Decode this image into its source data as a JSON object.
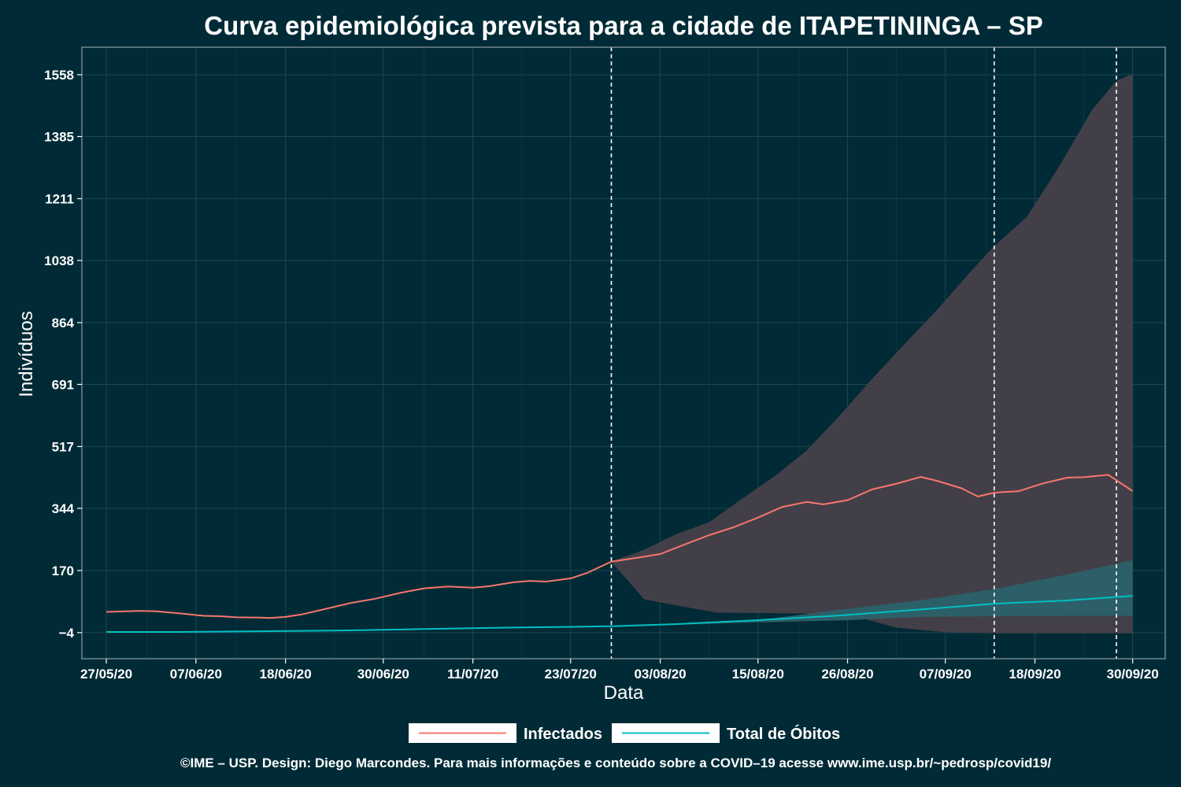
{
  "colors": {
    "background": "#002b36",
    "panel_border": "#8a9aa0",
    "grid": "#1f4550",
    "infectados": "#f8766d",
    "obitos": "#00bfc4",
    "band_infectados": "#433f48",
    "band_obitos": "#2c5f67",
    "vline": "#ffffff",
    "legend_box": "#ffffff"
  },
  "chart_data": {
    "type": "line",
    "title": "Curva epidemiológica prevista para a cidade de ITAPETININGA – SP",
    "xlabel": "Data",
    "ylabel": "Indivíduos",
    "x_start": "2020-05-24",
    "x_end": "2020-10-04",
    "ylim": [
      -77,
      1635
    ],
    "yticks": [
      -4,
      170,
      344,
      517,
      691,
      864,
      1038,
      1211,
      1385,
      1558
    ],
    "ytick_labels": [
      "−4",
      "170",
      "344",
      "517",
      "691",
      "864",
      "1038",
      "1211",
      "1385",
      "1558"
    ],
    "xticks": [
      {
        "date": "2020-05-27",
        "label": "27/05/20"
      },
      {
        "date": "2020-06-07",
        "label": "07/06/20"
      },
      {
        "date": "2020-06-18",
        "label": "18/06/20"
      },
      {
        "date": "2020-06-30",
        "label": "30/06/20"
      },
      {
        "date": "2020-07-11",
        "label": "11/07/20"
      },
      {
        "date": "2020-07-23",
        "label": "23/07/20"
      },
      {
        "date": "2020-08-03",
        "label": "03/08/20"
      },
      {
        "date": "2020-08-15",
        "label": "15/08/20"
      },
      {
        "date": "2020-08-26",
        "label": "26/08/20"
      },
      {
        "date": "2020-09-07",
        "label": "07/09/20"
      },
      {
        "date": "2020-09-18",
        "label": "18/09/20"
      },
      {
        "date": "2020-09-30",
        "label": "30/09/20"
      }
    ],
    "vlines": [
      "2020-07-28",
      "2020-09-13",
      "2020-09-28"
    ],
    "grid": true,
    "legend_position": "bottom",
    "series": [
      {
        "name": "Infectados",
        "color": "#f8766d",
        "points": [
          [
            "2020-05-27",
            54
          ],
          [
            "2020-05-31",
            57
          ],
          [
            "2020-06-02",
            56
          ],
          [
            "2020-06-05",
            50
          ],
          [
            "2020-06-08",
            43
          ],
          [
            "2020-06-10",
            42
          ],
          [
            "2020-06-12",
            39
          ],
          [
            "2020-06-15",
            38
          ],
          [
            "2020-06-16",
            37
          ],
          [
            "2020-06-18",
            40
          ],
          [
            "2020-06-20",
            47
          ],
          [
            "2020-06-23",
            63
          ],
          [
            "2020-06-26",
            79
          ],
          [
            "2020-06-29",
            91
          ],
          [
            "2020-07-02",
            107
          ],
          [
            "2020-07-05",
            120
          ],
          [
            "2020-07-08",
            125
          ],
          [
            "2020-07-11",
            122
          ],
          [
            "2020-07-13",
            126
          ],
          [
            "2020-07-16",
            137
          ],
          [
            "2020-07-18",
            141
          ],
          [
            "2020-07-20",
            139
          ],
          [
            "2020-07-23",
            148
          ],
          [
            "2020-07-25",
            163
          ],
          [
            "2020-07-28",
            195
          ],
          [
            "2020-07-31",
            205
          ],
          [
            "2020-08-03",
            216
          ],
          [
            "2020-08-06",
            243
          ],
          [
            "2020-08-09",
            269
          ],
          [
            "2020-08-12",
            291
          ],
          [
            "2020-08-15",
            318
          ],
          [
            "2020-08-18",
            348
          ],
          [
            "2020-08-21",
            362
          ],
          [
            "2020-08-23",
            355
          ],
          [
            "2020-08-26",
            367
          ],
          [
            "2020-08-29",
            397
          ],
          [
            "2020-09-01",
            413
          ],
          [
            "2020-09-04",
            432
          ],
          [
            "2020-09-06",
            421
          ],
          [
            "2020-09-09",
            400
          ],
          [
            "2020-09-11",
            377
          ],
          [
            "2020-09-13",
            388
          ],
          [
            "2020-09-16",
            392
          ],
          [
            "2020-09-19",
            414
          ],
          [
            "2020-09-22",
            430
          ],
          [
            "2020-09-24",
            431
          ],
          [
            "2020-09-27",
            438
          ],
          [
            "2020-09-30",
            392
          ]
        ]
      },
      {
        "name": "Total de Óbitos",
        "color": "#00bfc4",
        "points": [
          [
            "2020-05-27",
            -2
          ],
          [
            "2020-06-05",
            -2
          ],
          [
            "2020-06-15",
            0
          ],
          [
            "2020-06-25",
            2
          ],
          [
            "2020-07-05",
            6
          ],
          [
            "2020-07-15",
            10
          ],
          [
            "2020-07-25",
            13
          ],
          [
            "2020-07-28",
            14
          ],
          [
            "2020-08-05",
            20
          ],
          [
            "2020-08-15",
            31
          ],
          [
            "2020-08-25",
            44
          ],
          [
            "2020-09-04",
            61
          ],
          [
            "2020-09-13",
            77
          ],
          [
            "2020-09-22",
            86
          ],
          [
            "2020-09-30",
            99
          ]
        ]
      }
    ],
    "bands": [
      {
        "series": "Infectados",
        "color": "#433f48",
        "upper": [
          [
            "2020-07-28",
            195
          ],
          [
            "2020-08-01",
            228
          ],
          [
            "2020-08-05",
            272
          ],
          [
            "2020-08-09",
            305
          ],
          [
            "2020-08-13",
            370
          ],
          [
            "2020-08-17",
            433
          ],
          [
            "2020-08-21",
            506
          ],
          [
            "2020-08-25",
            603
          ],
          [
            "2020-08-29",
            706
          ],
          [
            "2020-09-02",
            804
          ],
          [
            "2020-09-06",
            900
          ],
          [
            "2020-09-10",
            1004
          ],
          [
            "2020-09-13",
            1078
          ],
          [
            "2020-09-17",
            1160
          ],
          [
            "2020-09-21",
            1302
          ],
          [
            "2020-09-25",
            1459
          ],
          [
            "2020-09-28",
            1541
          ],
          [
            "2020-09-30",
            1560
          ]
        ],
        "lower": [
          [
            "2020-07-28",
            195
          ],
          [
            "2020-08-01",
            90
          ],
          [
            "2020-08-02",
            85
          ],
          [
            "2020-08-10",
            52
          ],
          [
            "2020-08-20",
            50
          ],
          [
            "2020-08-26",
            47
          ],
          [
            "2020-09-01",
            10
          ],
          [
            "2020-09-07",
            -3
          ],
          [
            "2020-09-13",
            -6
          ],
          [
            "2020-09-20",
            -6
          ],
          [
            "2020-09-30",
            -6
          ]
        ]
      },
      {
        "series": "Total de Óbitos",
        "color": "#2c5f67",
        "upper": [
          [
            "2020-07-28",
            14
          ],
          [
            "2020-08-05",
            20
          ],
          [
            "2020-08-15",
            31
          ],
          [
            "2020-08-25",
            60
          ],
          [
            "2020-09-04",
            87
          ],
          [
            "2020-09-13",
            118
          ],
          [
            "2020-09-22",
            159
          ],
          [
            "2020-09-30",
            199
          ]
        ],
        "lower": [
          [
            "2020-07-28",
            14
          ],
          [
            "2020-08-05",
            18
          ],
          [
            "2020-08-15",
            25
          ],
          [
            "2020-08-25",
            30
          ],
          [
            "2020-09-04",
            40
          ],
          [
            "2020-09-13",
            42
          ],
          [
            "2020-09-22",
            43
          ],
          [
            "2020-09-30",
            43
          ]
        ]
      }
    ]
  },
  "legend": {
    "items": [
      {
        "label": "Infectados",
        "color": "#f8766d"
      },
      {
        "label": "Total de Óbitos",
        "color": "#00bfc4"
      }
    ]
  },
  "footer": "©IME – USP. Design: Diego Marcondes. Para mais informações e conteúdo sobre a COVID–19 acesse www.ime.usp.br/~pedrosp/covid19/"
}
